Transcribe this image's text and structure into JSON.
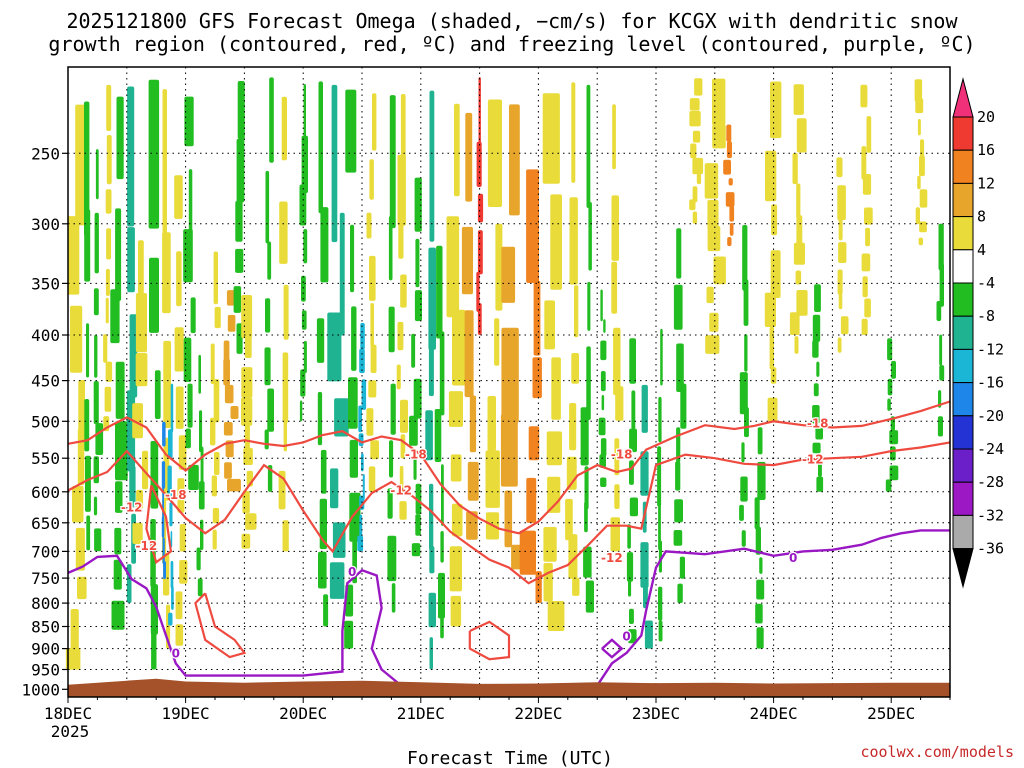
{
  "chart_data": {
    "type": "heatmap",
    "title": [
      "2025121800 GFS Forecast Omega (shaded, −cm/s) for KCGX with dendritic snow",
      "growth region (contoured, red, ºC) and freezing level (contoured, purple, ºC)"
    ],
    "xlabel": "Forecast Time (UTC)",
    "ylabel": "",
    "x_ticks": [
      {
        "label": "18DEC",
        "sub": "2025",
        "t": 0
      },
      {
        "label": "19DEC",
        "t": 24
      },
      {
        "label": "20DEC",
        "t": 48
      },
      {
        "label": "21DEC",
        "t": 72
      },
      {
        "label": "22DEC",
        "t": 96
      },
      {
        "label": "23DEC",
        "t": 120
      },
      {
        "label": "24DEC",
        "t": 144
      },
      {
        "label": "25DEC",
        "t": 168
      }
    ],
    "x_range_hours": [
      0,
      180
    ],
    "y_ticks": [
      250,
      300,
      350,
      400,
      450,
      500,
      550,
      600,
      650,
      700,
      750,
      800,
      850,
      900,
      950,
      1000
    ],
    "y_range_hPa": [
      200,
      1020
    ],
    "y_scale": "log-pressure",
    "grid": true,
    "colorbar": {
      "levels": [
        20,
        16,
        12,
        8,
        4,
        -4,
        -8,
        -12,
        -16,
        -20,
        -24,
        -28,
        -32,
        -36
      ],
      "colors": [
        "#f0317a",
        "#ee3a31",
        "#f0821f",
        "#e8a52c",
        "#e9dc3a",
        "#ffffff",
        "#21bd21",
        "#1fb392",
        "#1bb5d5",
        "#1e86e8",
        "#2434d4",
        "#6a1fc9",
        "#9b18c4",
        "#aaaaaa",
        "#000000"
      ]
    },
    "contour_labels": {
      "dgz_red": [
        "-12",
        "-18"
      ],
      "freezing_purple": [
        "0"
      ]
    },
    "dgz_minus12": [
      [
        0,
        598
      ],
      [
        4,
        582
      ],
      [
        8,
        570
      ],
      [
        12,
        540
      ],
      [
        16,
        572
      ],
      [
        20,
        605
      ],
      [
        24,
        642
      ],
      [
        28,
        668
      ],
      [
        32,
        645
      ],
      [
        36,
        600
      ],
      [
        40,
        560
      ],
      [
        44,
        580
      ],
      [
        48,
        630
      ],
      [
        52,
        680
      ],
      [
        54,
        700
      ],
      [
        58,
        640
      ],
      [
        62,
        602
      ],
      [
        66,
        585
      ],
      [
        70,
        605
      ],
      [
        74,
        630
      ],
      [
        78,
        665
      ],
      [
        82,
        690
      ],
      [
        86,
        715
      ],
      [
        90,
        730
      ],
      [
        94,
        760
      ],
      [
        98,
        740
      ],
      [
        102,
        725
      ],
      [
        106,
        690
      ],
      [
        110,
        655
      ],
      [
        114,
        655
      ],
      [
        117,
        660
      ],
      [
        120,
        560
      ],
      [
        126,
        545
      ],
      [
        132,
        550
      ],
      [
        138,
        558
      ],
      [
        144,
        560
      ],
      [
        150,
        552
      ],
      [
        156,
        550
      ],
      [
        162,
        548
      ],
      [
        168,
        540
      ],
      [
        174,
        535
      ],
      [
        180,
        528
      ]
    ],
    "dgz_minus18": [
      [
        0,
        530
      ],
      [
        4,
        525
      ],
      [
        8,
        508
      ],
      [
        12,
        495
      ],
      [
        16,
        508
      ],
      [
        20,
        545
      ],
      [
        24,
        568
      ],
      [
        28,
        545
      ],
      [
        32,
        530
      ],
      [
        36,
        525
      ],
      [
        40,
        530
      ],
      [
        44,
        533
      ],
      [
        48,
        528
      ],
      [
        52,
        518
      ],
      [
        56,
        513
      ],
      [
        60,
        528
      ],
      [
        64,
        520
      ],
      [
        68,
        525
      ],
      [
        72,
        545
      ],
      [
        76,
        588
      ],
      [
        80,
        622
      ],
      [
        84,
        643
      ],
      [
        88,
        660
      ],
      [
        92,
        668
      ],
      [
        96,
        648
      ],
      [
        100,
        615
      ],
      [
        104,
        575
      ],
      [
        108,
        560
      ],
      [
        112,
        570
      ],
      [
        115,
        565
      ],
      [
        118,
        538
      ],
      [
        124,
        520
      ],
      [
        130,
        505
      ],
      [
        136,
        510
      ],
      [
        140,
        506
      ],
      [
        144,
        500
      ],
      [
        150,
        505
      ],
      [
        156,
        508
      ],
      [
        162,
        506
      ],
      [
        168,
        497
      ],
      [
        174,
        487
      ],
      [
        180,
        475
      ]
    ],
    "freezing_0c": [
      [
        0,
        740
      ],
      [
        3,
        728
      ],
      [
        6,
        710
      ],
      [
        10,
        708
      ],
      [
        13,
        752
      ],
      [
        16,
        770
      ],
      [
        18,
        808
      ],
      [
        20,
        870
      ],
      [
        22,
        935
      ],
      [
        24,
        965
      ],
      [
        36,
        965
      ],
      [
        48,
        965
      ],
      [
        56,
        955
      ],
      [
        56,
        860
      ],
      [
        57,
        760
      ],
      [
        60,
        735
      ],
      [
        63,
        745
      ],
      [
        64,
        810
      ],
      [
        62,
        900
      ],
      [
        64,
        950
      ],
      [
        68,
        990
      ],
      [
        72,
        990
      ],
      [
        84,
        990
      ],
      [
        96,
        990
      ],
      [
        108,
        990
      ],
      [
        111,
        935
      ],
      [
        114,
        910
      ],
      [
        117,
        870
      ],
      [
        118,
        815
      ],
      [
        120,
        730
      ],
      [
        122,
        700
      ],
      [
        130,
        705
      ],
      [
        138,
        695
      ],
      [
        144,
        708
      ],
      [
        150,
        700
      ],
      [
        156,
        697
      ],
      [
        162,
        688
      ],
      [
        166,
        676
      ],
      [
        170,
        668
      ],
      [
        174,
        663
      ],
      [
        180,
        663
      ]
    ],
    "terrain_surface_hPa": [
      [
        0,
        988
      ],
      [
        12,
        978
      ],
      [
        18,
        973
      ],
      [
        24,
        980
      ],
      [
        36,
        983
      ],
      [
        48,
        980
      ],
      [
        60,
        978
      ],
      [
        72,
        982
      ],
      [
        84,
        986
      ],
      [
        96,
        985
      ],
      [
        108,
        982
      ],
      [
        120,
        984
      ],
      [
        132,
        983
      ],
      [
        144,
        985
      ],
      [
        156,
        984
      ],
      [
        168,
        983
      ],
      [
        180,
        983
      ]
    ]
  },
  "credit": "coolwx.com/models"
}
